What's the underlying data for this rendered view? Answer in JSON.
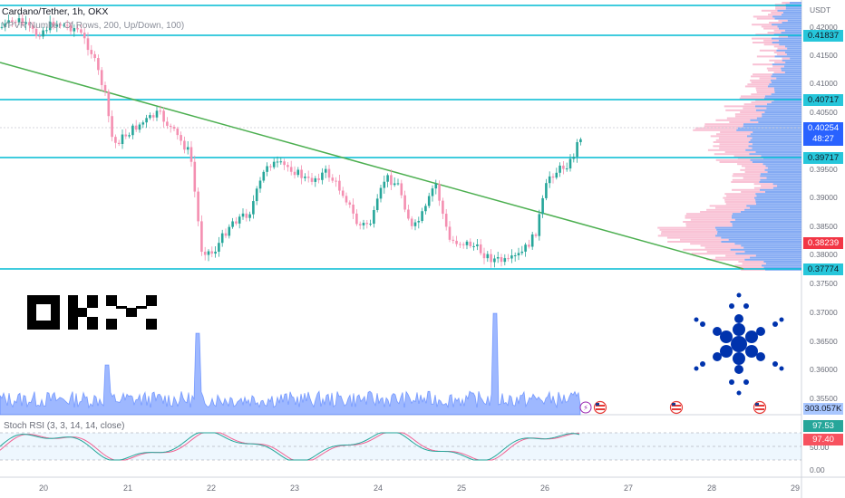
{
  "header": {
    "symbol": "Cardano/Tether, 1h, OKX",
    "indicator": "VPVR Number Of Rows, 200, Up/Down, 100)",
    "currency": "USDT"
  },
  "price_axis": {
    "ticks": [
      "0.42000",
      "0.41500",
      "0.41000",
      "0.40500",
      "0.39500",
      "0.39000",
      "0.38500",
      "0.38000",
      "0.37500",
      "0.37000",
      "0.36500",
      "0.36000",
      "0.35500"
    ]
  },
  "levels": {
    "l1": "0.41837",
    "l2": "0.40717",
    "l3": "0.39717",
    "l4": "0.37774"
  },
  "current_price": {
    "price": "0.40254",
    "countdown": "48:27"
  },
  "tags": {
    "pink_level": "0.38239",
    "volume": "303.057K",
    "stoch_k": "97.53",
    "stoch_d": "97.40"
  },
  "stoch": {
    "label": "Stoch RSI (3, 3, 14, 14, close)",
    "ticks": [
      "50.00",
      "0.00"
    ]
  },
  "time_axis": [
    "20",
    "21",
    "22",
    "23",
    "24",
    "25",
    "26",
    "27",
    "28",
    "29"
  ],
  "logos": {
    "exchange": "OKX exchange logo",
    "coin": "Cardano logo"
  },
  "colors": {
    "up": "#26a69a",
    "down": "#ef9a9a",
    "level_line": "#00bcd4",
    "trend_line": "#4caf50",
    "stoch_k": "#26a69a",
    "stoch_d": "#f06292",
    "volume": "#2962ff"
  }
}
